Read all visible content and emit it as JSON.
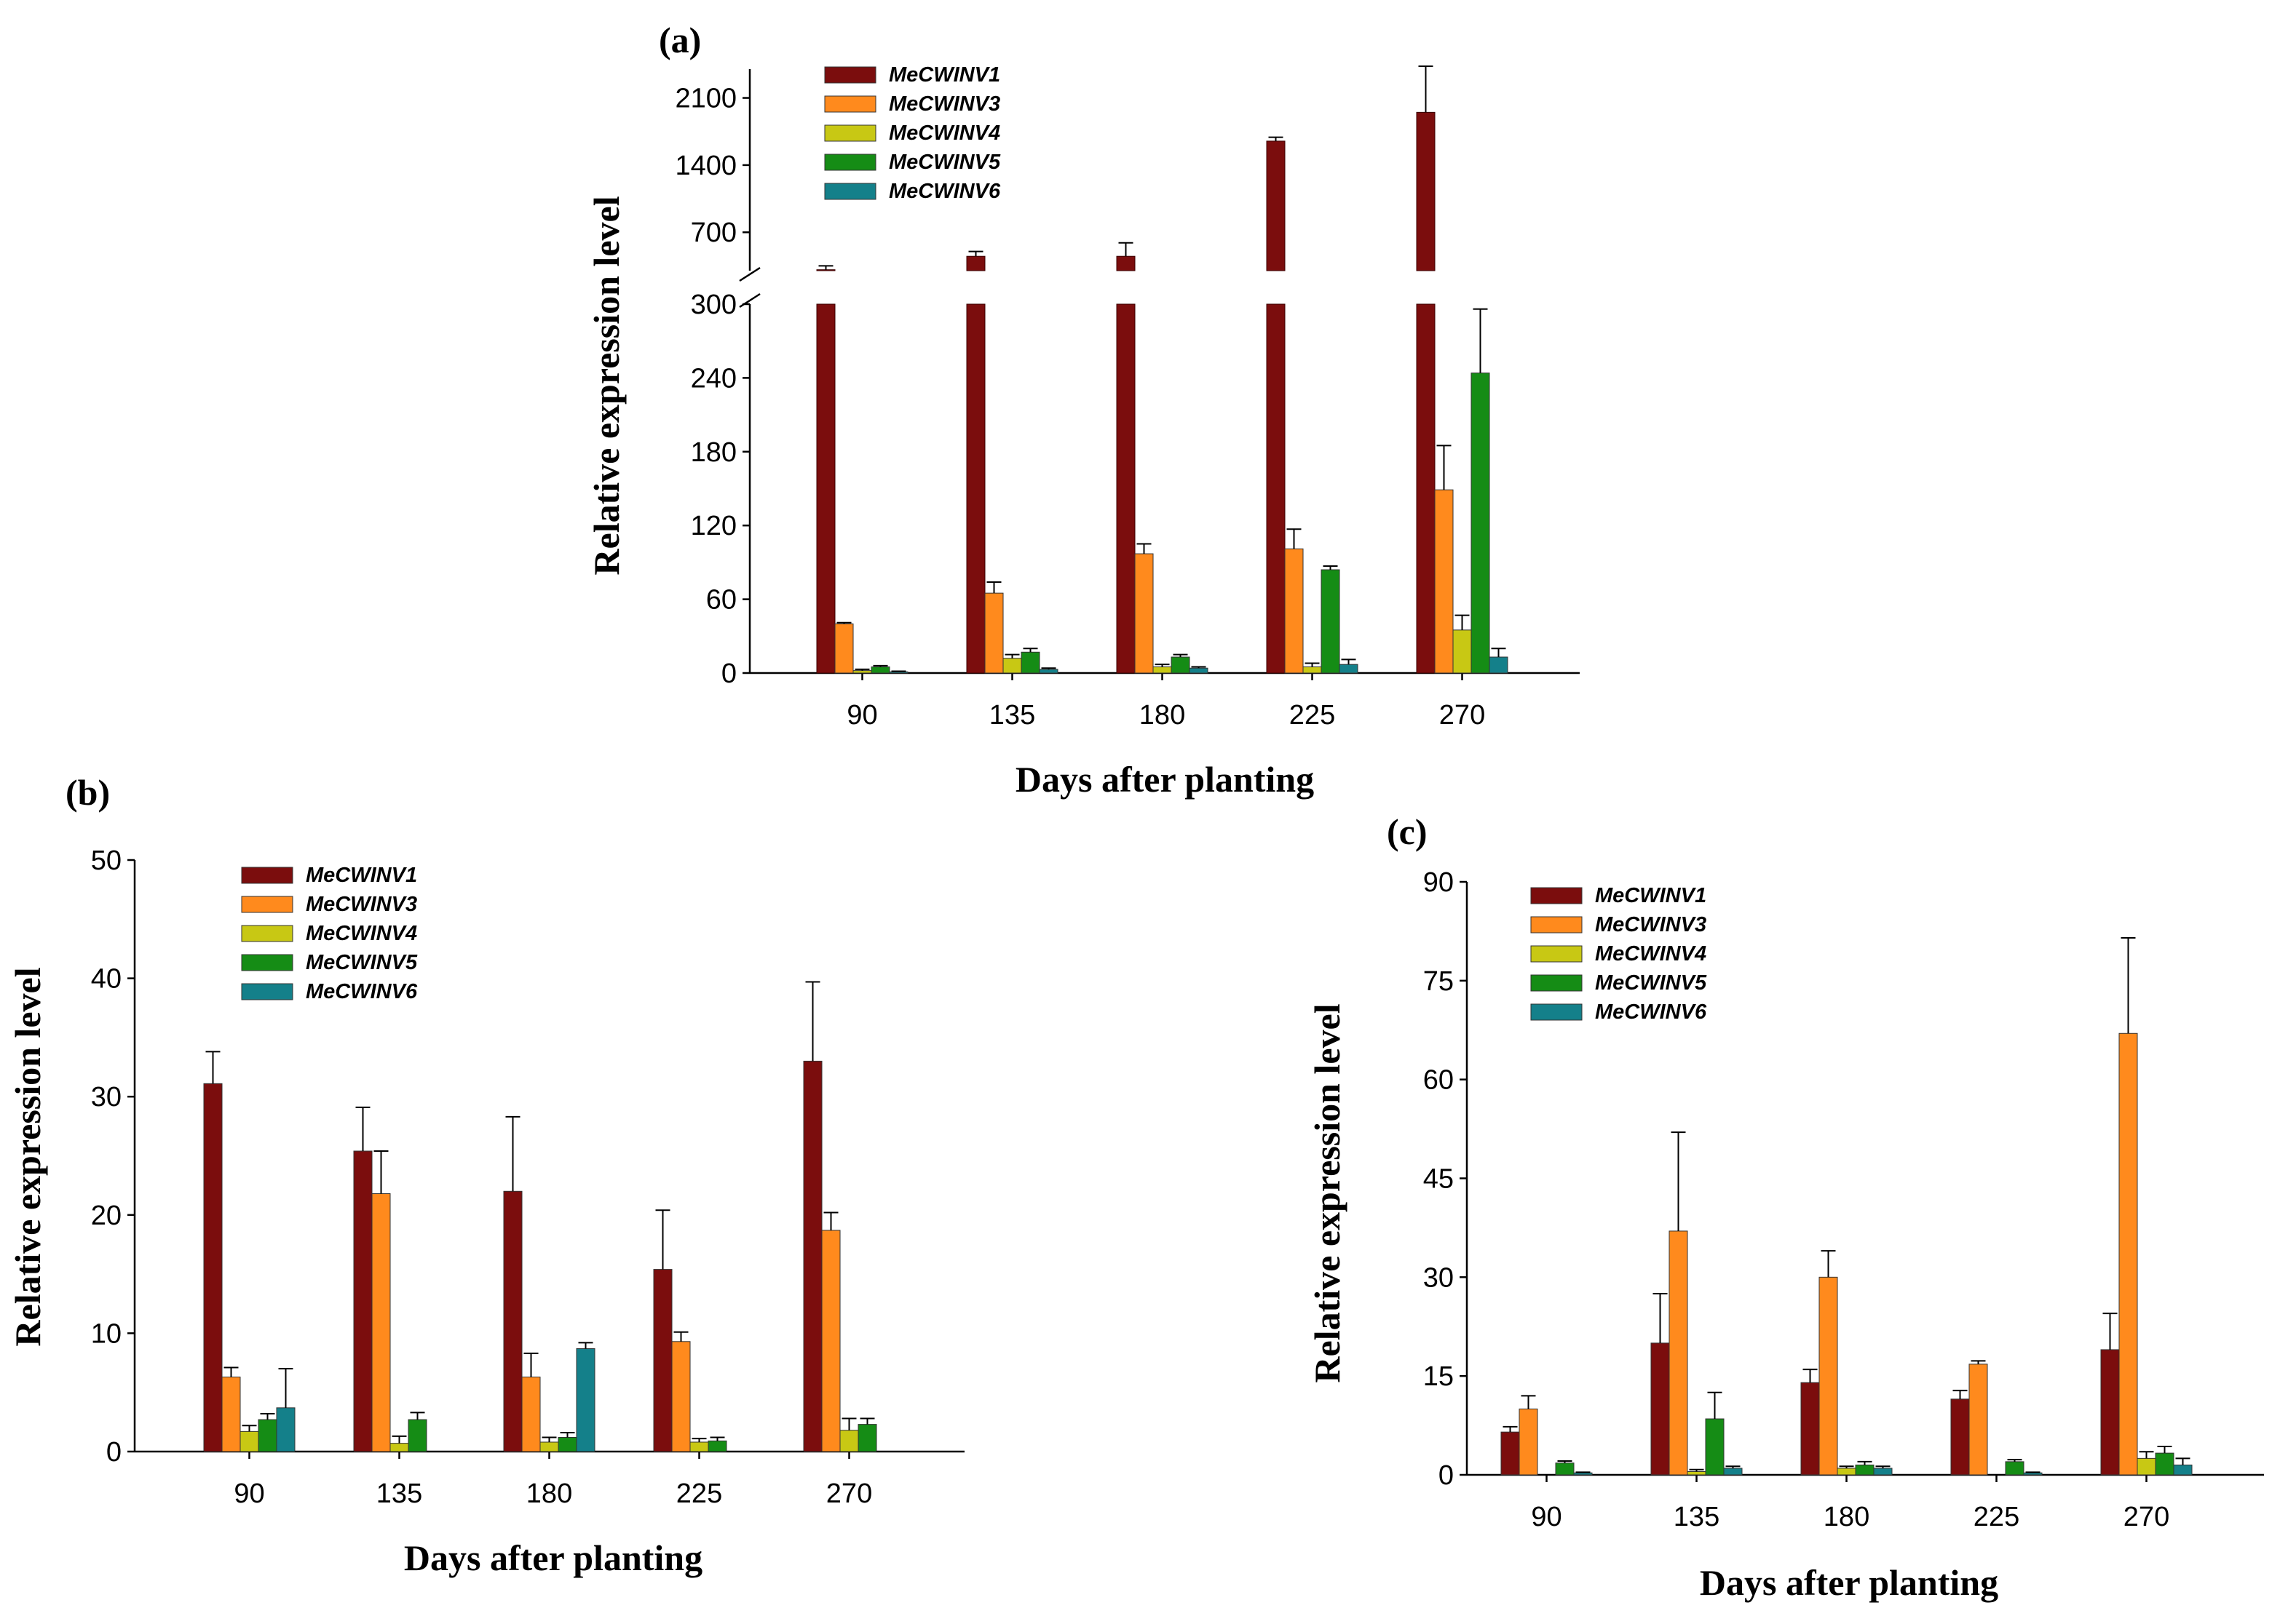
{
  "colors": {
    "MeCWINV1": "#7b0d0d",
    "MeCWINV3": "#ff8a1d",
    "MeCWINV4": "#c8c814",
    "MeCWINV5": "#158c15",
    "MeCWINV6": "#14808a"
  },
  "chart_data": [
    {
      "id": "a",
      "type": "bar",
      "panel_label": "(a)",
      "xlabel": "Days after planting",
      "ylabel": "Relative  expression  level",
      "categories": [
        "90",
        "135",
        "180",
        "225",
        "270"
      ],
      "y_axis": "broken",
      "ylim_lower": [
        0,
        300
      ],
      "ylim_upper": [
        300,
        2400
      ],
      "yticks_lower": [
        "0",
        "60",
        "120",
        "180",
        "240",
        "300"
      ],
      "yticks_upper": [
        "700",
        "1400",
        "2100"
      ],
      "legend_position": "top-left",
      "series": [
        {
          "name": "MeCWINV1",
          "values": [
            310,
            450,
            450,
            1650,
            1950
          ],
          "errors": [
            40,
            50,
            140,
            40,
            480
          ]
        },
        {
          "name": "MeCWINV3",
          "values": [
            40,
            65,
            97,
            101,
            149
          ],
          "errors": [
            1,
            9,
            8,
            16,
            36
          ]
        },
        {
          "name": "MeCWINV4",
          "values": [
            2,
            12,
            5,
            5,
            35
          ],
          "errors": [
            1,
            3,
            2,
            3,
            12
          ]
        },
        {
          "name": "MeCWINV5",
          "values": [
            5,
            17,
            13,
            84,
            244
          ],
          "errors": [
            1,
            3,
            2,
            3,
            52
          ]
        },
        {
          "name": "MeCWINV6",
          "values": [
            1,
            3,
            4,
            7,
            13
          ],
          "errors": [
            0.5,
            1,
            1,
            4,
            7
          ]
        }
      ]
    },
    {
      "id": "b",
      "type": "bar",
      "panel_label": "(b)",
      "xlabel": "Days after planting",
      "ylabel": "Relative  expression  level",
      "categories": [
        "90",
        "135",
        "180",
        "225",
        "270"
      ],
      "ylim": [
        0,
        50
      ],
      "yticks": [
        "0",
        "10",
        "20",
        "30",
        "40",
        "50"
      ],
      "legend_position": "top-left",
      "series": [
        {
          "name": "MeCWINV1",
          "values": [
            31.1,
            25.4,
            22.0,
            15.4,
            33.0
          ],
          "errors": [
            2.7,
            3.7,
            6.3,
            5.0,
            6.7
          ]
        },
        {
          "name": "MeCWINV3",
          "values": [
            6.3,
            21.8,
            6.3,
            9.3,
            18.7
          ],
          "errors": [
            0.8,
            3.6,
            2.0,
            0.8,
            1.5
          ]
        },
        {
          "name": "MeCWINV4",
          "values": [
            1.7,
            0.7,
            0.8,
            0.8,
            1.8
          ],
          "errors": [
            0.5,
            0.6,
            0.4,
            0.3,
            1.0
          ]
        },
        {
          "name": "MeCWINV5",
          "values": [
            2.7,
            2.7,
            1.2,
            0.9,
            2.3
          ],
          "errors": [
            0.5,
            0.6,
            0.4,
            0.3,
            0.5
          ]
        },
        {
          "name": "MeCWINV6",
          "values": [
            3.7,
            0,
            8.7,
            0,
            0
          ],
          "errors": [
            3.3,
            0,
            0.5,
            0,
            0
          ]
        }
      ]
    },
    {
      "id": "c",
      "type": "bar",
      "panel_label": "(c)",
      "xlabel": "Days after planting",
      "ylabel": "Relative  expression  level",
      "categories": [
        "90",
        "135",
        "180",
        "225",
        "270"
      ],
      "ylim": [
        0,
        90
      ],
      "yticks": [
        "0",
        "15",
        "30",
        "45",
        "60",
        "75",
        "90"
      ],
      "legend_position": "top-left",
      "series": [
        {
          "name": "MeCWINV1",
          "values": [
            6.5,
            20.0,
            14.0,
            11.5,
            19.0
          ],
          "errors": [
            0.8,
            7.5,
            2.0,
            1.3,
            5.5
          ]
        },
        {
          "name": "MeCWINV3",
          "values": [
            10.0,
            37.0,
            30.0,
            16.8,
            67.0
          ],
          "errors": [
            2.0,
            15.0,
            4.0,
            0.5,
            14.5
          ]
        },
        {
          "name": "MeCWINV4",
          "values": [
            0,
            0.5,
            1.0,
            0,
            2.5
          ],
          "errors": [
            0,
            0.3,
            0.3,
            0,
            1.0
          ]
        },
        {
          "name": "MeCWINV5",
          "values": [
            1.8,
            8.5,
            1.5,
            2.0,
            3.3
          ],
          "errors": [
            0.3,
            4.0,
            0.5,
            0.3,
            1.0
          ]
        },
        {
          "name": "MeCWINV6",
          "values": [
            0.3,
            1.0,
            1.0,
            0.3,
            1.5
          ],
          "errors": [
            0.1,
            0.3,
            0.3,
            0.1,
            1.0
          ]
        }
      ]
    }
  ]
}
